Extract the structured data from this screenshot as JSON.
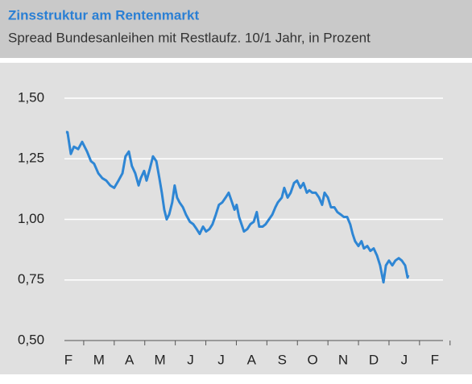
{
  "chart_data": {
    "type": "line",
    "title": "Zinsstruktur am Rentenmarkt",
    "subtitle": "Spread Bundesanleihen mit Restlaufz. 10/1 Jahr, in Prozent",
    "categories": [
      "F",
      "M",
      "A",
      "M",
      "J",
      "J",
      "A",
      "S",
      "O",
      "N",
      "D",
      "J",
      "F"
    ],
    "xlim": [
      -0.13,
      12.27
    ],
    "ylim": [
      0.5,
      1.5
    ],
    "yticks": [
      {
        "value": 0.5,
        "label": "0,50"
      },
      {
        "value": 0.75,
        "label": "0,75"
      },
      {
        "value": 1.0,
        "label": "1,00"
      },
      {
        "value": 1.25,
        "label": "1,25"
      },
      {
        "value": 1.5,
        "label": "1,50"
      }
    ],
    "grid": true,
    "series": [
      {
        "color": "#2e86d4",
        "x": [
          -0.08,
          -0.03,
          0.08,
          0.18,
          0.32,
          0.45,
          0.61,
          0.74,
          0.84,
          0.98,
          1.11,
          1.24,
          1.37,
          1.5,
          1.64,
          1.77,
          1.87,
          1.98,
          2.08,
          2.19,
          2.3,
          2.37,
          2.48,
          2.56,
          2.67,
          2.77,
          2.88,
          2.98,
          3.06,
          3.14,
          3.22,
          3.3,
          3.4,
          3.48,
          3.56,
          3.64,
          3.75,
          3.85,
          3.98,
          4.09,
          4.2,
          4.3,
          4.41,
          4.51,
          4.62,
          4.72,
          4.83,
          4.93,
          5.04,
          5.15,
          5.25,
          5.36,
          5.44,
          5.51,
          5.59,
          5.67,
          5.75,
          5.86,
          5.96,
          6.07,
          6.17,
          6.25,
          6.36,
          6.46,
          6.57,
          6.68,
          6.78,
          6.86,
          6.99,
          7.07,
          7.18,
          7.28,
          7.39,
          7.49,
          7.6,
          7.7,
          7.81,
          7.89,
          7.99,
          8.1,
          8.21,
          8.31,
          8.39,
          8.5,
          8.6,
          8.71,
          8.81,
          8.92,
          9.02,
          9.13,
          9.23,
          9.31,
          9.39,
          9.5,
          9.6,
          9.68,
          9.79,
          9.89,
          10.0,
          10.11,
          10.21,
          10.32,
          10.4,
          10.5,
          10.61,
          10.71,
          10.82,
          10.92,
          11.03,
          11.11,
          11.13
        ],
        "values": [
          1.36,
          1.36,
          1.27,
          1.3,
          1.29,
          1.32,
          1.28,
          1.24,
          1.23,
          1.19,
          1.17,
          1.16,
          1.14,
          1.13,
          1.16,
          1.19,
          1.26,
          1.28,
          1.22,
          1.19,
          1.14,
          1.17,
          1.2,
          1.16,
          1.21,
          1.26,
          1.24,
          1.17,
          1.11,
          1.04,
          1.0,
          1.02,
          1.07,
          1.14,
          1.09,
          1.07,
          1.05,
          1.02,
          0.99,
          0.98,
          0.96,
          0.94,
          0.97,
          0.95,
          0.96,
          0.98,
          1.02,
          1.06,
          1.07,
          1.09,
          1.11,
          1.07,
          1.04,
          1.06,
          1.01,
          0.98,
          0.95,
          0.96,
          0.98,
          0.99,
          1.03,
          0.97,
          0.97,
          0.98,
          1.0,
          1.02,
          1.05,
          1.07,
          1.09,
          1.13,
          1.09,
          1.11,
          1.15,
          1.16,
          1.13,
          1.15,
          1.11,
          1.12,
          1.11,
          1.11,
          1.09,
          1.06,
          1.11,
          1.09,
          1.05,
          1.05,
          1.03,
          1.02,
          1.01,
          1.01,
          0.98,
          0.94,
          0.91,
          0.89,
          0.91,
          0.88,
          0.89,
          0.87,
          0.88,
          0.85,
          0.81,
          0.74,
          0.81,
          0.83,
          0.81,
          0.83,
          0.84,
          0.83,
          0.81,
          0.76,
          0.77
        ]
      }
    ]
  }
}
